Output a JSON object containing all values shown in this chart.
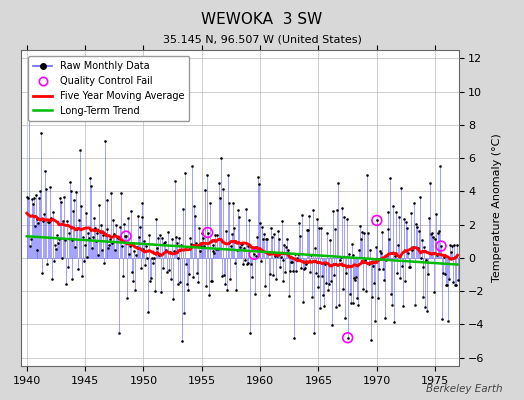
{
  "title": "WEWOKA  3 SW",
  "subtitle": "35.145 N, 96.507 W (United States)",
  "ylabel": "Temperature Anomaly (°C)",
  "watermark": "Berkeley Earth",
  "xlim": [
    1939.5,
    1977.0
  ],
  "ylim": [
    -6.5,
    12.5
  ],
  "yticks": [
    -6,
    -4,
    -2,
    0,
    2,
    4,
    6,
    8,
    10,
    12
  ],
  "xticks": [
    1940,
    1945,
    1950,
    1955,
    1960,
    1965,
    1970,
    1975
  ],
  "bg_color": "#d8d8d8",
  "plot_bg_color": "#ffffff",
  "raw_line_color": "#6666ff",
  "raw_marker_color": "#000000",
  "qc_fail_color": "#ff00ff",
  "moving_avg_color": "#ff0000",
  "trend_color": "#00bb00",
  "grid_color": "#bbbbbb",
  "seed": 137
}
